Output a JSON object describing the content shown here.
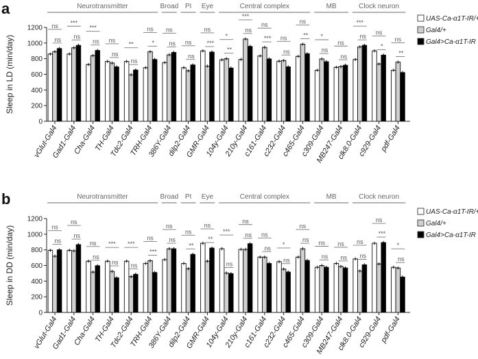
{
  "colors": {
    "uas": "#ffffff",
    "gal4": "#d0d0d0",
    "cross": "#000000",
    "group_line": "#888888"
  },
  "legend": [
    "UAS-Ca-α1T-IR/+",
    "Gal4/+",
    "Gal4>Ca-α1T-IR"
  ],
  "chart_data": [
    {
      "type": "bar",
      "panel": "a",
      "ylabel": "Sleep in LD (min/day)",
      "ylim": [
        0,
        1200
      ],
      "yticks": [
        0,
        200,
        400,
        600,
        800,
        1000,
        1200
      ],
      "categories": [
        "vGlut-Gal4",
        "Gad1-Gal4",
        "Cha-Gal4",
        "TH-Gal4",
        "Tdc2-Gal4",
        "TRH-Gal4",
        "386Y-Gal4",
        "dilp2-Gal4",
        "GMR-Gal4",
        "104y-Gal4",
        "210y-Gal4",
        "c161-Gal4",
        "c232-Gal4",
        "c465-Gal4",
        "c309-Gal4",
        "MB247-Gal4",
        "clk8.0-Gal4",
        "c929-Gal4",
        "pdf-Gal4"
      ],
      "groups": [
        {
          "label": "Neurotransmitter",
          "start": 0,
          "end": 5
        },
        {
          "label": "Broad",
          "start": 6,
          "end": 6
        },
        {
          "label": "PI",
          "start": 7,
          "end": 7
        },
        {
          "label": "Eye",
          "start": 8,
          "end": 8
        },
        {
          "label": "Central complex",
          "start": 9,
          "end": 13
        },
        {
          "label": "MB",
          "start": 14,
          "end": 15
        },
        {
          "label": "Clock neuron",
          "start": 16,
          "end": 18
        }
      ],
      "series": [
        {
          "name": "UAS-Ca-α1T-IR/+",
          "values": [
            860,
            860,
            725,
            765,
            765,
            685,
            750,
            685,
            900,
            785,
            790,
            835,
            768,
            830,
            652,
            690,
            790,
            900,
            652
          ]
        },
        {
          "name": "Gal4/+",
          "values": [
            890,
            940,
            840,
            745,
            595,
            890,
            850,
            645,
            705,
            800,
            1052,
            945,
            777,
            986,
            797,
            699,
            951,
            733,
            757
          ]
        },
        {
          "name": "Gal4>Ca-α1T-IR",
          "values": [
            930,
            970,
            905,
            695,
            655,
            790,
            880,
            720,
            885,
            680,
            957,
            797,
            696,
            864,
            762,
            716,
            971,
            846,
            623
          ]
        }
      ],
      "sig_uas_vs_cross": [
        "ns",
        "***",
        "***",
        "ns",
        "**",
        "ns",
        "ns",
        "ns",
        "ns",
        "*",
        "***",
        "ns",
        "ns",
        "ns",
        "*",
        "ns",
        "***",
        "ns",
        "ns"
      ],
      "sig_gal4_vs_cross": [
        "ns",
        "ns",
        "ns",
        "ns",
        "ns",
        "*",
        "ns",
        "ns",
        "***",
        "**",
        "ns",
        "***",
        "ns",
        "**",
        "ns",
        "ns",
        "ns",
        "*",
        "**"
      ]
    },
    {
      "type": "bar",
      "panel": "b",
      "ylabel": "Sleep in DD (min/day)",
      "ylim": [
        0,
        1200
      ],
      "yticks": [
        0,
        200,
        400,
        600,
        800,
        1000,
        1200
      ],
      "categories": [
        "vGlut-Gal4",
        "Gad1-Gal4",
        "Cha-Gal4",
        "TH-Gal4",
        "Tdc2-Gal4",
        "TRH-Gal4",
        "386Y-Gal4",
        "dilp2-Gal4",
        "GMR-Gal4",
        "104y-Gal4",
        "210y-Gal4",
        "c161-Gal4",
        "c232-Gal4",
        "c465-Gal4",
        "c309-Gal4",
        "MB247-Gal4",
        "clk8.0-Gal4",
        "c929-Gal4",
        "pdf-Gal4"
      ],
      "groups": [
        {
          "label": "Neurotransmitter",
          "start": 0,
          "end": 5
        },
        {
          "label": "Broad",
          "start": 6,
          "end": 6
        },
        {
          "label": "PI",
          "start": 7,
          "end": 7
        },
        {
          "label": "Eye",
          "start": 8,
          "end": 8
        },
        {
          "label": "Central complex",
          "start": 9,
          "end": 13
        },
        {
          "label": "MB",
          "start": 14,
          "end": 15
        },
        {
          "label": "Clock neuron",
          "start": 16,
          "end": 18
        }
      ],
      "series": [
        {
          "name": "UAS-Ca-α1T-IR/+",
          "values": [
            794,
            794,
            655,
            655,
            655,
            626,
            675,
            626,
            884,
            814,
            806,
            707,
            649,
            707,
            577,
            626,
            684,
            884,
            577
          ]
        },
        {
          "name": "Gal4/+",
          "values": [
            719,
            788,
            516,
            525,
            458,
            661,
            814,
            559,
            655,
            504,
            806,
            707,
            554,
            814,
            600,
            588,
            530,
            620,
            568
          ]
        },
        {
          "name": "Gal4>Ca-α1T-IR",
          "values": [
            800,
            867,
            597,
            443,
            487,
            510,
            814,
            742,
            823,
            496,
            878,
            626,
            516,
            664,
            577,
            568,
            609,
            893,
            452
          ]
        }
      ],
      "sig_uas_vs_cross": [
        "ns",
        "ns",
        "ns",
        "***",
        "***",
        "ns",
        "ns",
        "ns",
        "ns",
        "***",
        "ns",
        "ns",
        "*",
        "ns",
        "ns",
        "ns",
        "ns",
        "ns",
        "*"
      ],
      "sig_gal4_vs_cross": [
        "ns",
        "ns",
        "ns",
        "ns",
        "ns",
        "***",
        "ns",
        "**",
        "**",
        "ns",
        "ns",
        "ns",
        "ns",
        "ns",
        "ns",
        "ns",
        "ns",
        "***",
        "ns"
      ]
    }
  ]
}
